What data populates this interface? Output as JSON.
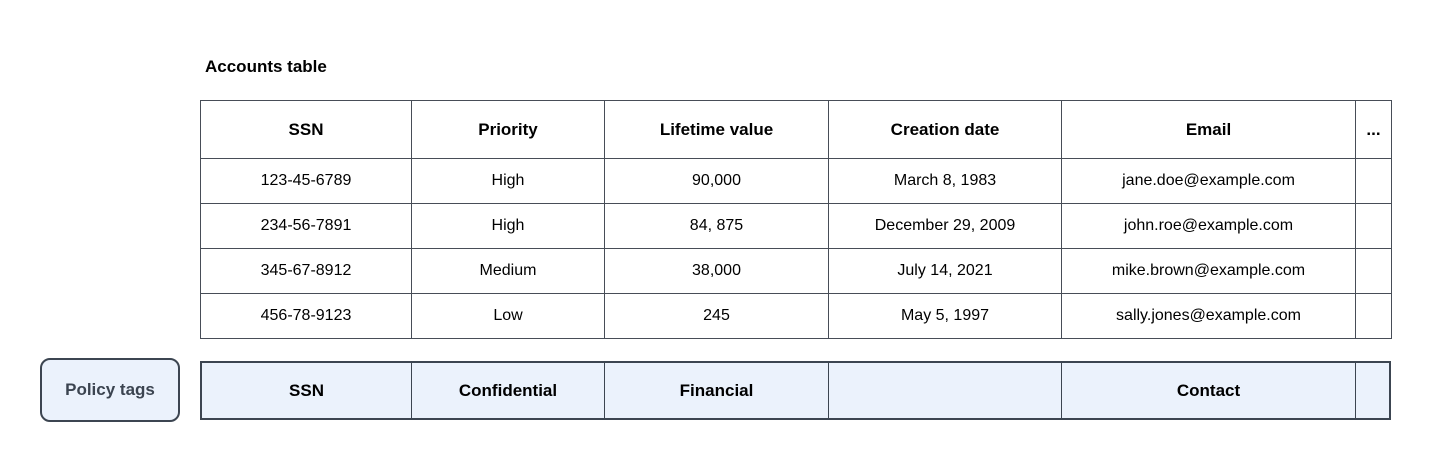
{
  "title": "Accounts table",
  "table": {
    "columns": [
      "SSN",
      "Priority",
      "Lifetime value",
      "Creation date",
      "Email",
      "..."
    ],
    "rows": [
      [
        "123-45-6789",
        "High",
        "90,000",
        "March 8, 1983",
        "jane.doe@example.com",
        ""
      ],
      [
        "234-56-7891",
        "High",
        "84, 875",
        "December 29, 2009",
        "john.roe@example.com",
        ""
      ],
      [
        "345-67-8912",
        "Medium",
        "38,000",
        "July 14, 2021",
        "mike.brown@example.com",
        ""
      ],
      [
        "456-78-9123",
        "Low",
        "245",
        "May 5, 1997",
        "sally.jones@example.com",
        ""
      ]
    ]
  },
  "policy": {
    "button_label": "Policy tags",
    "tags": [
      "SSN",
      "Confidential",
      "Financial",
      "",
      "Contact",
      ""
    ]
  },
  "colors": {
    "table_border": "#474d57",
    "policy_background": "#ebf2fc",
    "policy_border": "#3c4551",
    "policy_button_text": "#3b4450",
    "page_background": "#ffffff",
    "table_text": "#000000"
  }
}
